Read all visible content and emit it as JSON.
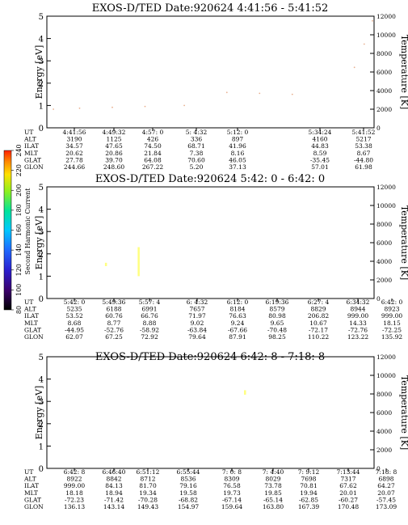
{
  "chart_data": [
    {
      "type": "heatmap",
      "title": "EXOS-D/TED   Date:920624  4:41:56 - 5:41:52",
      "ylabel": "Energy [eV]",
      "ylabel_right": "Temperature [K]",
      "ylim": [
        0,
        5
      ],
      "ylim_right": [
        0,
        12000
      ],
      "yticks": [
        "0",
        "1",
        "2",
        "3",
        "4",
        "5"
      ],
      "yticks_right": [
        "0",
        "2000",
        "4000",
        "6000",
        "8000",
        "10000",
        "12000"
      ],
      "data_segments": [
        [
          0,
          0.43
        ],
        [
          0.54,
          0.76
        ],
        [
          0.93,
          1.0
        ]
      ],
      "bands": [
        {
          "segment": 0,
          "energy_start": 1.6,
          "energy_end": 1.1,
          "intensity": "high"
        },
        {
          "segment": 1,
          "energy_start": 1.9,
          "energy_end": 1.5,
          "intensity": "high"
        },
        {
          "segment": 2,
          "energy_start": 1.5,
          "energy_end": 1.3,
          "intensity": "medium"
        }
      ],
      "temperature_trace": [
        {
          "x": 0.02,
          "y": 2000
        },
        {
          "x": 0.1,
          "y": 2100
        },
        {
          "x": 0.2,
          "y": 2200
        },
        {
          "x": 0.3,
          "y": 2300
        },
        {
          "x": 0.42,
          "y": 2400
        },
        {
          "x": 0.55,
          "y": 3800
        },
        {
          "x": 0.65,
          "y": 3700
        },
        {
          "x": 0.75,
          "y": 3600
        },
        {
          "x": 0.94,
          "y": 6500
        },
        {
          "x": 0.97,
          "y": 9000
        },
        {
          "x": 0.995,
          "y": 11500
        }
      ],
      "orbit_table": {
        "labels": [
          "UT",
          "ALT",
          "ILAT",
          "MLT",
          "GLAT",
          "GLON"
        ],
        "columns": [
          {
            "UT": "4:41:56",
            "ALT": "3190",
            "ILAT": "34.57",
            "MLT": "20.62",
            "GLAT": "27.78",
            "GLON": "244.66"
          },
          {
            "UT": "4:49:32",
            "ALT": "1125",
            "ILAT": "47.65",
            "MLT": "20.86",
            "GLAT": "39.70",
            "GLON": "248.60"
          },
          {
            "UT": "4:57: 0",
            "ALT": "426",
            "ILAT": "74.50",
            "MLT": "21.84",
            "GLAT": "64.08",
            "GLON": "267.22"
          },
          {
            "UT": "5: 4:32",
            "ALT": "336",
            "ILAT": "68.71",
            "MLT": "7.38",
            "GLAT": "70.60",
            "GLON": "5.20"
          },
          {
            "UT": "5:12: 0",
            "ALT": "897",
            "ILAT": "41.96",
            "MLT": "8.16",
            "GLAT": "46.05",
            "GLON": "37.13"
          },
          {
            "UT": "5:34:24",
            "ALT": "4160",
            "ILAT": "44.83",
            "MLT": "8.59",
            "GLAT": "-35.45",
            "GLON": "57.01"
          },
          {
            "UT": "5:41:52",
            "ALT": "5217",
            "ILAT": "53.38",
            "MLT": "8.67",
            "GLAT": "-44.80",
            "GLON": "61.98"
          }
        ]
      }
    },
    {
      "type": "heatmap",
      "title": "EXOS-D/TED   Date:920624  5:42: 0 - 6:42: 0",
      "ylabel": "Energy [eV]",
      "ylabel_right": "Temperature [K]",
      "ylim": [
        0,
        5
      ],
      "ylim_right": [
        0,
        12000
      ],
      "yticks": [
        "0",
        "1",
        "2",
        "3",
        "4",
        "5"
      ],
      "yticks_right": [
        "0",
        "2000",
        "4000",
        "6000",
        "8000",
        "10000",
        "12000"
      ],
      "data_segments": [
        [
          0,
          1.0
        ]
      ],
      "features": [
        {
          "x": 0.28,
          "e_low": 1.0,
          "e_high": 2.3,
          "color": "#ffff80"
        },
        {
          "x": 0.34,
          "e_low": 1.1,
          "e_high": 2.0,
          "color": "#ffffff"
        },
        {
          "x": 0.18,
          "e_low": 1.45,
          "e_high": 1.6,
          "color": "#ffff80"
        }
      ],
      "orbit_table": {
        "labels": [
          "UT",
          "ALT",
          "ILAT",
          "MLT",
          "GLAT",
          "GLON"
        ],
        "columns": [
          {
            "UT": "5:42: 0",
            "ALT": "5235",
            "ILAT": "53.52",
            "MLT": "8.68",
            "GLAT": "-44.95",
            "GLON": "62.07"
          },
          {
            "UT": "5:49:36",
            "ALT": "6188",
            "ILAT": "60.76",
            "MLT": "8.77",
            "GLAT": "-52.76",
            "GLON": "67.25"
          },
          {
            "UT": "5:57: 4",
            "ALT": "6991",
            "ILAT": "66.76",
            "MLT": "8.88",
            "GLAT": "-58.92",
            "GLON": "72.92"
          },
          {
            "UT": "6: 4:32",
            "ALT": "7657",
            "ILAT": "71.97",
            "MLT": "9.02",
            "GLAT": "-63.84",
            "GLON": "79.64"
          },
          {
            "UT": "6:12: 0",
            "ALT": "8184",
            "ILAT": "76.63",
            "MLT": "9.24",
            "GLAT": "-67.66",
            "GLON": "87.91"
          },
          {
            "UT": "6:19:36",
            "ALT": "8579",
            "ILAT": "80.98",
            "MLT": "9.65",
            "GLAT": "-70.48",
            "GLON": "98.25"
          },
          {
            "UT": "6:27: 4",
            "ALT": "8829",
            "ILAT": "206.82",
            "MLT": "10.67",
            "GLAT": "-72.17",
            "GLON": "110.22"
          },
          {
            "UT": "6:34:32",
            "ALT": "8944",
            "ILAT": "999.00",
            "MLT": "14.33",
            "GLAT": "-72.76",
            "GLON": "123.22"
          },
          {
            "UT": "6:42: 0",
            "ALT": "8923",
            "ILAT": "999.00",
            "MLT": "18.15",
            "GLAT": "-72.25",
            "GLON": "135.92"
          }
        ]
      }
    },
    {
      "type": "heatmap",
      "title": "EXOS-D/TED   Date:920624  6:42: 8 - 7:18: 8",
      "ylabel": "Energy [eV]",
      "ylabel_right": "Temperature [K]",
      "ylim": [
        0,
        5
      ],
      "ylim_right": [
        0,
        12000
      ],
      "yticks": [
        "0",
        "1",
        "2",
        "3",
        "4",
        "5"
      ],
      "yticks_right": [
        "0",
        "2000",
        "4000",
        "6000",
        "8000",
        "10000",
        "12000"
      ],
      "data_segments": [
        [
          0,
          1.0
        ]
      ],
      "features": [
        {
          "x": 0.605,
          "e_low": 3.3,
          "e_high": 3.5,
          "color": "#ffff80"
        }
      ],
      "orbit_table": {
        "labels": [
          "UT",
          "ALT",
          "ILAT",
          "MLT",
          "GLAT",
          "GLON"
        ],
        "columns": [
          {
            "UT": "6:42: 8",
            "ALT": "8922",
            "ILAT": "999.00",
            "MLT": "18.18",
            "GLAT": "-72.23",
            "GLON": "136.13"
          },
          {
            "UT": "6:46:40",
            "ALT": "8842",
            "ILAT": "84.13",
            "MLT": "18.94",
            "GLAT": "-71.42",
            "GLON": "143.14"
          },
          {
            "UT": "6:51:12",
            "ALT": "8712",
            "ILAT": "81.70",
            "MLT": "19.34",
            "GLAT": "-70.28",
            "GLON": "149.43"
          },
          {
            "UT": "6:55:44",
            "ALT": "8536",
            "ILAT": "79.16",
            "MLT": "19.58",
            "GLAT": "-68.82",
            "GLON": "154.97"
          },
          {
            "UT": "7: 0: 8",
            "ALT": "8309",
            "ILAT": "76.58",
            "MLT": "19.73",
            "GLAT": "-67.14",
            "GLON": "159.64"
          },
          {
            "UT": "7: 4:40",
            "ALT": "8029",
            "ILAT": "73.78",
            "MLT": "19.85",
            "GLAT": "-65.14",
            "GLON": "163.80"
          },
          {
            "UT": "7: 9:12",
            "ALT": "7698",
            "ILAT": "70.81",
            "MLT": "19.94",
            "GLAT": "-62.85",
            "GLON": "167.39"
          },
          {
            "UT": "7:13:44",
            "ALT": "7317",
            "ILAT": "67.62",
            "MLT": "20.01",
            "GLAT": "-60.27",
            "GLON": "170.48"
          },
          {
            "UT": "7:18: 8",
            "ALT": "6898",
            "ILAT": "64.27",
            "MLT": "20.07",
            "GLAT": "-57.45",
            "GLON": "173.09"
          }
        ]
      }
    }
  ],
  "colorbar": {
    "label": "Second Harmonic Current",
    "ticks": [
      "80",
      "100",
      "120",
      "140",
      "160",
      "180",
      "200",
      "220",
      "240"
    ],
    "colors": [
      "#000000",
      "#3a006a",
      "#2a1fd0",
      "#1f6cff",
      "#00c8ff",
      "#00e39a",
      "#8af020",
      "#ffe000",
      "#ff8800",
      "#ff2000"
    ]
  }
}
